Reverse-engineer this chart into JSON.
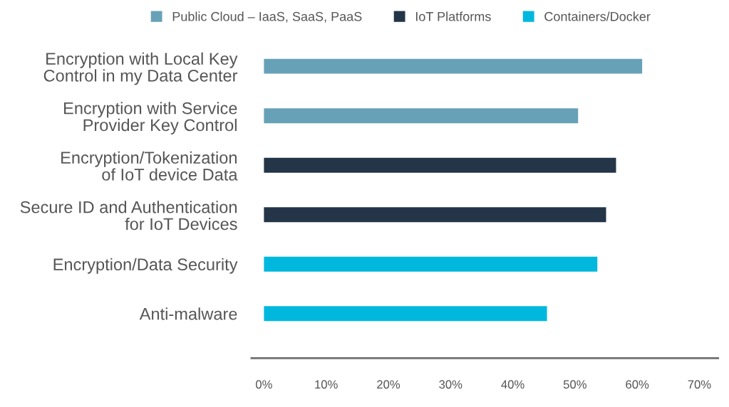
{
  "chart_data": {
    "type": "bar",
    "orientation": "horizontal",
    "categories": [
      "Encryption with Local Key Control in my Data Center",
      "Encryption with Service Provider Key Control",
      "Encryption/Tokenization of IoT device Data",
      "Secure ID and Authentication for IoT Devices",
      "Encryption/Data Security",
      "Anti-malware"
    ],
    "series": [
      {
        "name": "Public Cloud – IaaS, SaaS, PaaS",
        "color": "#67a1b8",
        "values": [
          60.8,
          50.5,
          null,
          null,
          null,
          null
        ]
      },
      {
        "name": "IoT Platforms",
        "color": "#233546",
        "values": [
          null,
          null,
          56.6,
          55.0,
          null,
          null
        ]
      },
      {
        "name": "Containers/Docker",
        "color": "#00b8de",
        "values": [
          null,
          null,
          null,
          null,
          53.6,
          45.5
        ]
      }
    ],
    "xlim": [
      -2,
      73
    ],
    "xticks": [
      {
        "value": 0,
        "label": "0%"
      },
      {
        "value": 10,
        "label": "10%"
      },
      {
        "value": 20,
        "label": "20%"
      },
      {
        "value": 30,
        "label": "30%"
      },
      {
        "value": 40,
        "label": "40%"
      },
      {
        "value": 50,
        "label": "50%"
      },
      {
        "value": 60,
        "label": "60%"
      },
      {
        "value": 70,
        "label": "70%"
      }
    ],
    "grid": false,
    "legend": "top"
  }
}
